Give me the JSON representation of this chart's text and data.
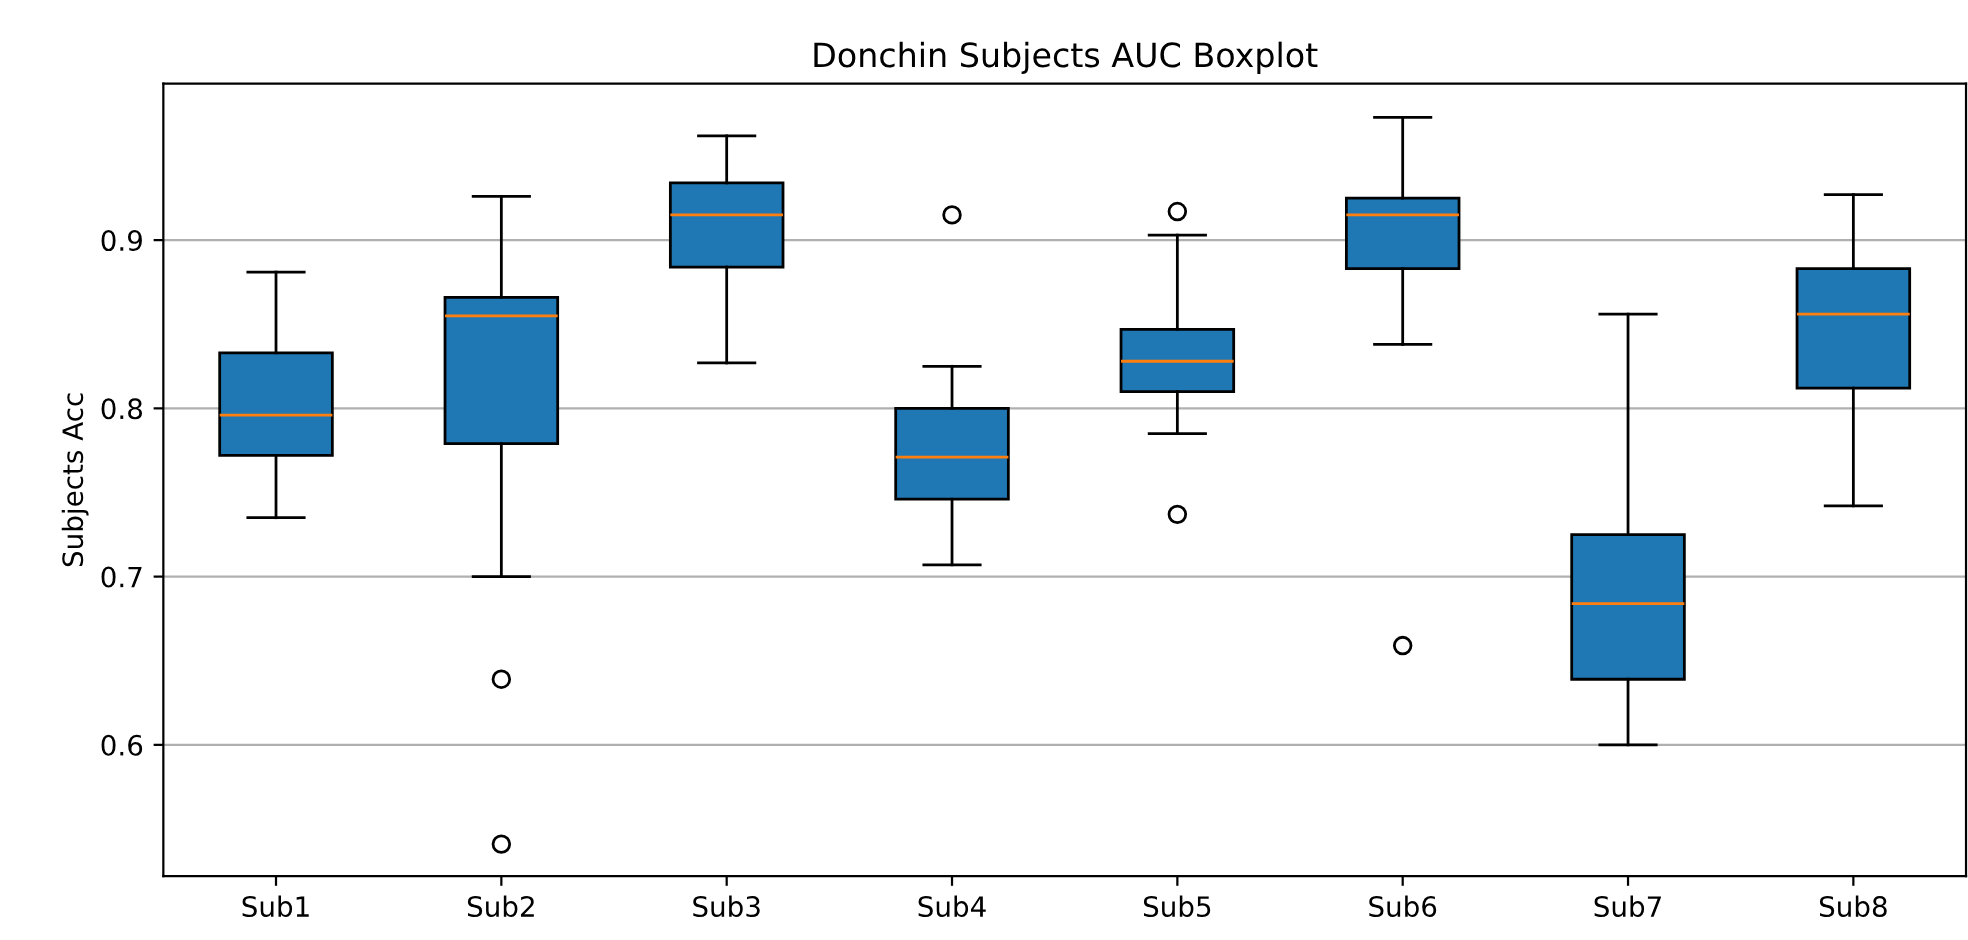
{
  "chart_data": {
    "type": "box",
    "title": "Donchin Subjects AUC Boxplot",
    "ylabel": "Subjects Acc",
    "categories": [
      "Sub1",
      "Sub2",
      "Sub3",
      "Sub4",
      "Sub5",
      "Sub6",
      "Sub7",
      "Sub8"
    ],
    "color": "#1f77b4",
    "boxes": [
      {
        "low": 0.735,
        "q1": 0.772,
        "median": 0.796,
        "q3": 0.833,
        "high": 0.881
      },
      {
        "low": 0.7,
        "q1": 0.779,
        "median": 0.855,
        "q3": 0.866,
        "high": 0.926,
        "outliers": [
          0.639,
          0.541
        ]
      },
      {
        "low": 0.827,
        "q1": 0.884,
        "median": 0.915,
        "q3": 0.934,
        "high": 0.962
      },
      {
        "low": 0.707,
        "q1": 0.746,
        "median": 0.771,
        "q3": 0.8,
        "high": 0.825,
        "outliers": [
          0.915
        ]
      },
      {
        "low": 0.785,
        "q1": 0.81,
        "median": 0.828,
        "q3": 0.847,
        "high": 0.903,
        "outliers": [
          0.917,
          0.737
        ]
      },
      {
        "low": 0.838,
        "q1": 0.883,
        "median": 0.915,
        "q3": 0.925,
        "high": 0.973,
        "outliers": [
          0.659
        ]
      },
      {
        "low": 0.6,
        "q1": 0.639,
        "median": 0.684,
        "q3": 0.725,
        "high": 0.856
      },
      {
        "low": 0.742,
        "q1": 0.812,
        "median": 0.856,
        "q3": 0.883,
        "high": 0.927
      }
    ],
    "ylim": [
      0.522,
      0.993
    ],
    "yticks": [
      0.6,
      0.7,
      0.8,
      0.9
    ],
    "grid": "y"
  }
}
